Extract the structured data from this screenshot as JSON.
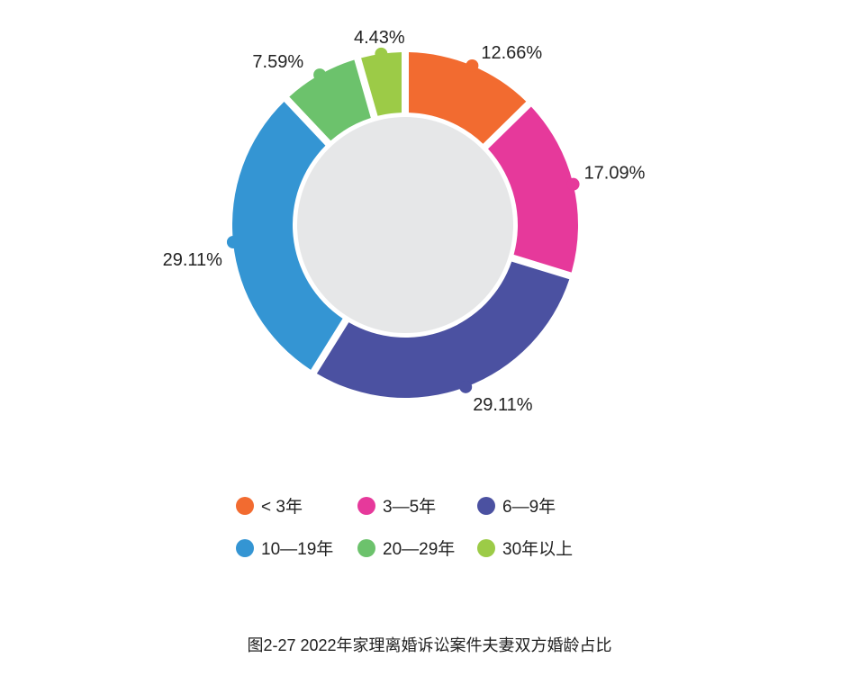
{
  "chart_data": {
    "type": "pie",
    "variant": "donut",
    "title": "图2-27  2022年家理离婚诉讼案件夫妻双方婚龄占比",
    "categories": [
      "< 3年",
      "3—5年",
      "6—9年",
      "10—19年",
      "20—29年",
      "30年以上"
    ],
    "values": [
      12.66,
      17.09,
      29.11,
      29.11,
      7.59,
      4.43
    ],
    "value_labels": [
      "12.66%",
      "17.09%",
      "29.11%",
      "29.11%",
      "7.59%",
      "4.43%"
    ],
    "colors": [
      "#F26B30",
      "#E6399B",
      "#4B51A1",
      "#3495D3",
      "#6CC26C",
      "#9CCB47"
    ],
    "center_color": "#E6E7E8",
    "legend_position": "bottom"
  }
}
